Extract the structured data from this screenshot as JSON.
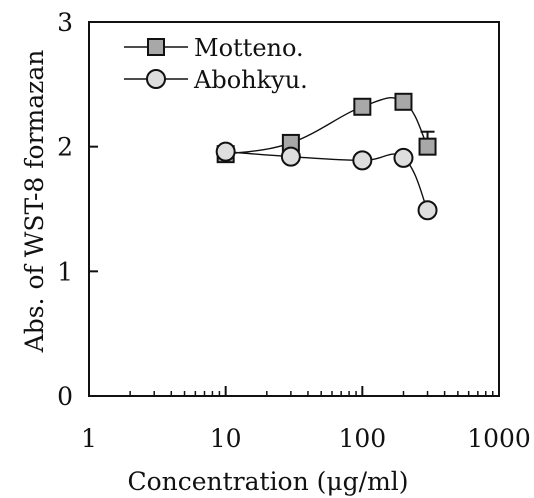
{
  "chart_data": {
    "type": "line",
    "title": "",
    "xlabel": "Concentration (μg/ml)",
    "ylabel": "Abs. of WST-8 formazan",
    "xscale": "log",
    "xlim": [
      1,
      1000
    ],
    "ylim": [
      0,
      3
    ],
    "xticks": [
      1,
      10,
      100,
      1000
    ],
    "xtick_labels": [
      "1",
      "10",
      "100",
      "1000"
    ],
    "yticks": [
      0,
      1,
      2,
      3
    ],
    "ytick_labels": [
      "0",
      "1",
      "2",
      "3"
    ],
    "grid": false,
    "legend_position": "top-left",
    "series": [
      {
        "name": "Motteno.",
        "marker": "square",
        "color": "#a8a8a8",
        "x": [
          10,
          30,
          100,
          200,
          300
        ],
        "y": [
          1.94,
          2.03,
          2.32,
          2.36,
          2.0
        ],
        "error": [
          0,
          0,
          0,
          0,
          0.12
        ]
      },
      {
        "name": "Abohkyu.",
        "marker": "circle",
        "color": "#dedede",
        "x": [
          10,
          30,
          100,
          200,
          300
        ],
        "y": [
          1.96,
          1.92,
          1.89,
          1.91,
          1.49
        ],
        "error": [
          0,
          0,
          0,
          0,
          0
        ]
      }
    ]
  }
}
